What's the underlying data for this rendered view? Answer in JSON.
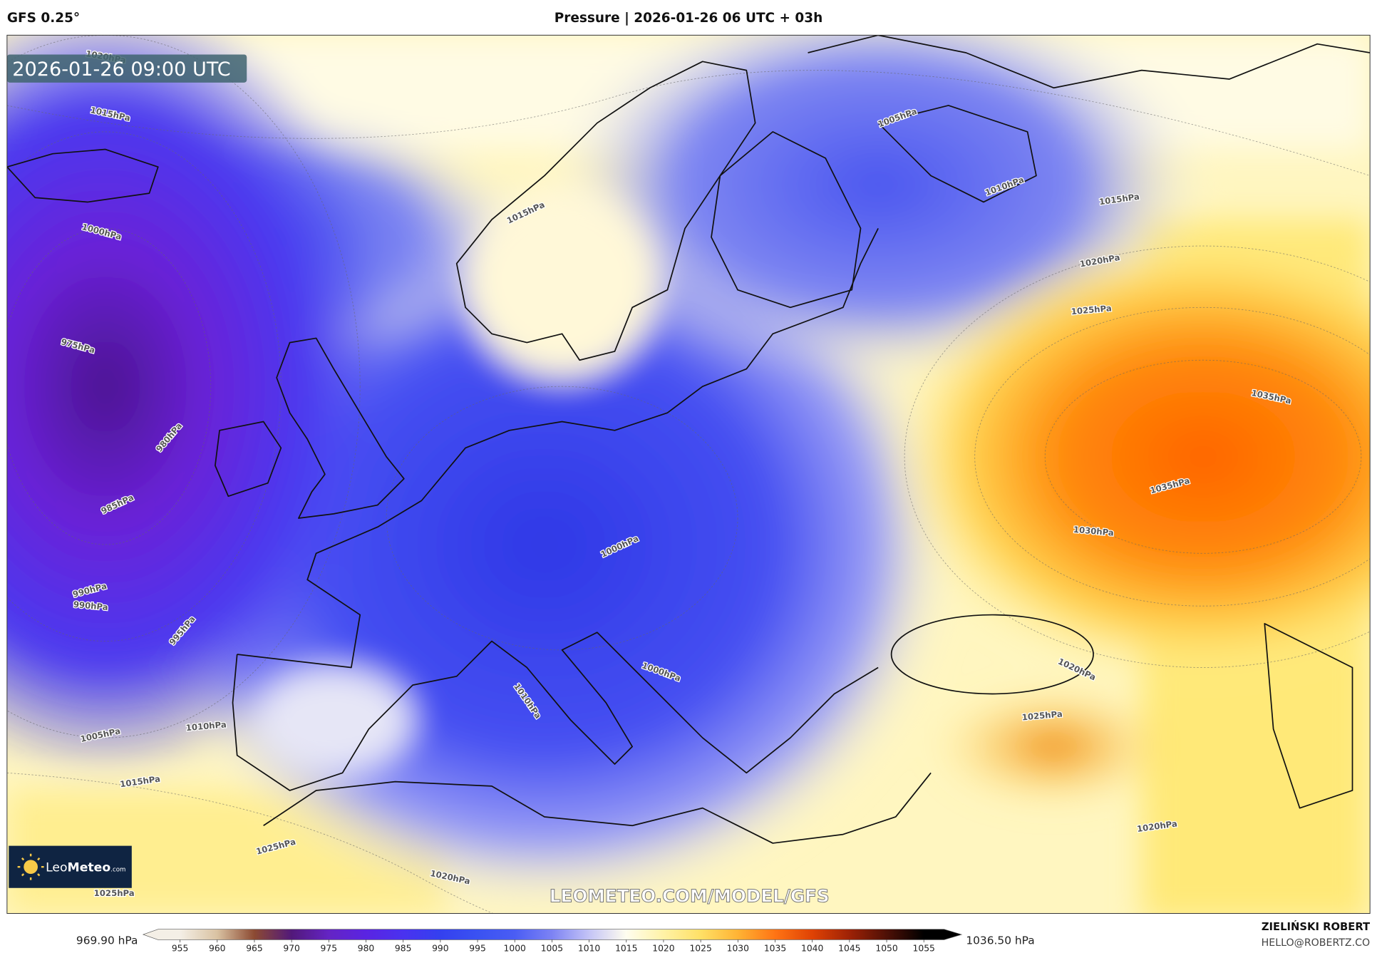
{
  "header": {
    "model": "GFS 0.25°",
    "title": "Pressure | 2026-01-26 06 UTC + 03h"
  },
  "map": {
    "timestamp": "2026-01-26 09:00 UTC",
    "contour_labels": [
      "1020hPa",
      "1015hPa",
      "1000hPa",
      "975hPa",
      "980hPa",
      "985hPa",
      "990hPa",
      "990hPa",
      "995hPa",
      "1005hPa",
      "1010hPa",
      "1015hPa",
      "1025hPa",
      "1025hPa",
      "1020hPa",
      "1015hPa",
      "1005hPa",
      "1010hPa",
      "1015hPa",
      "1020hPa",
      "1025hPa",
      "1035hPa",
      "1035hPa",
      "1030hPa",
      "1000hPa",
      "1000hPa",
      "1010hPa",
      "1020hPa",
      "1025hPa",
      "1020hPa"
    ],
    "watermark": "LEOMETEO.COM/MODEL/GFS",
    "logo": {
      "name": "Leo",
      "brand": "Meteo",
      "suffix": ".com"
    }
  },
  "colorbar": {
    "min_label": "969.90 hPa",
    "max_label": "1036.50 hPa",
    "ticks": [
      955,
      960,
      965,
      970,
      975,
      980,
      985,
      990,
      995,
      1000,
      1005,
      1010,
      1015,
      1020,
      1025,
      1030,
      1035,
      1040,
      1045,
      1050,
      1055
    ],
    "colors": [
      "#f4efe6",
      "#d9c2a2",
      "#8c4a32",
      "#52197a",
      "#6424c4",
      "#5a24e2",
      "#4a32ef",
      "#3440ef",
      "#3a52f2",
      "#4a5df4",
      "#7d83f4",
      "#c4c4f6",
      "#fffdef",
      "#fff2a6",
      "#ffe066",
      "#ffb334",
      "#ff7414",
      "#df4204",
      "#9e2206",
      "#4e1006",
      "#000000"
    ]
  },
  "credits": {
    "author": "ZIELIŃSKI ROBERT",
    "contact": "HELLO@ROBERTZ.CO"
  }
}
